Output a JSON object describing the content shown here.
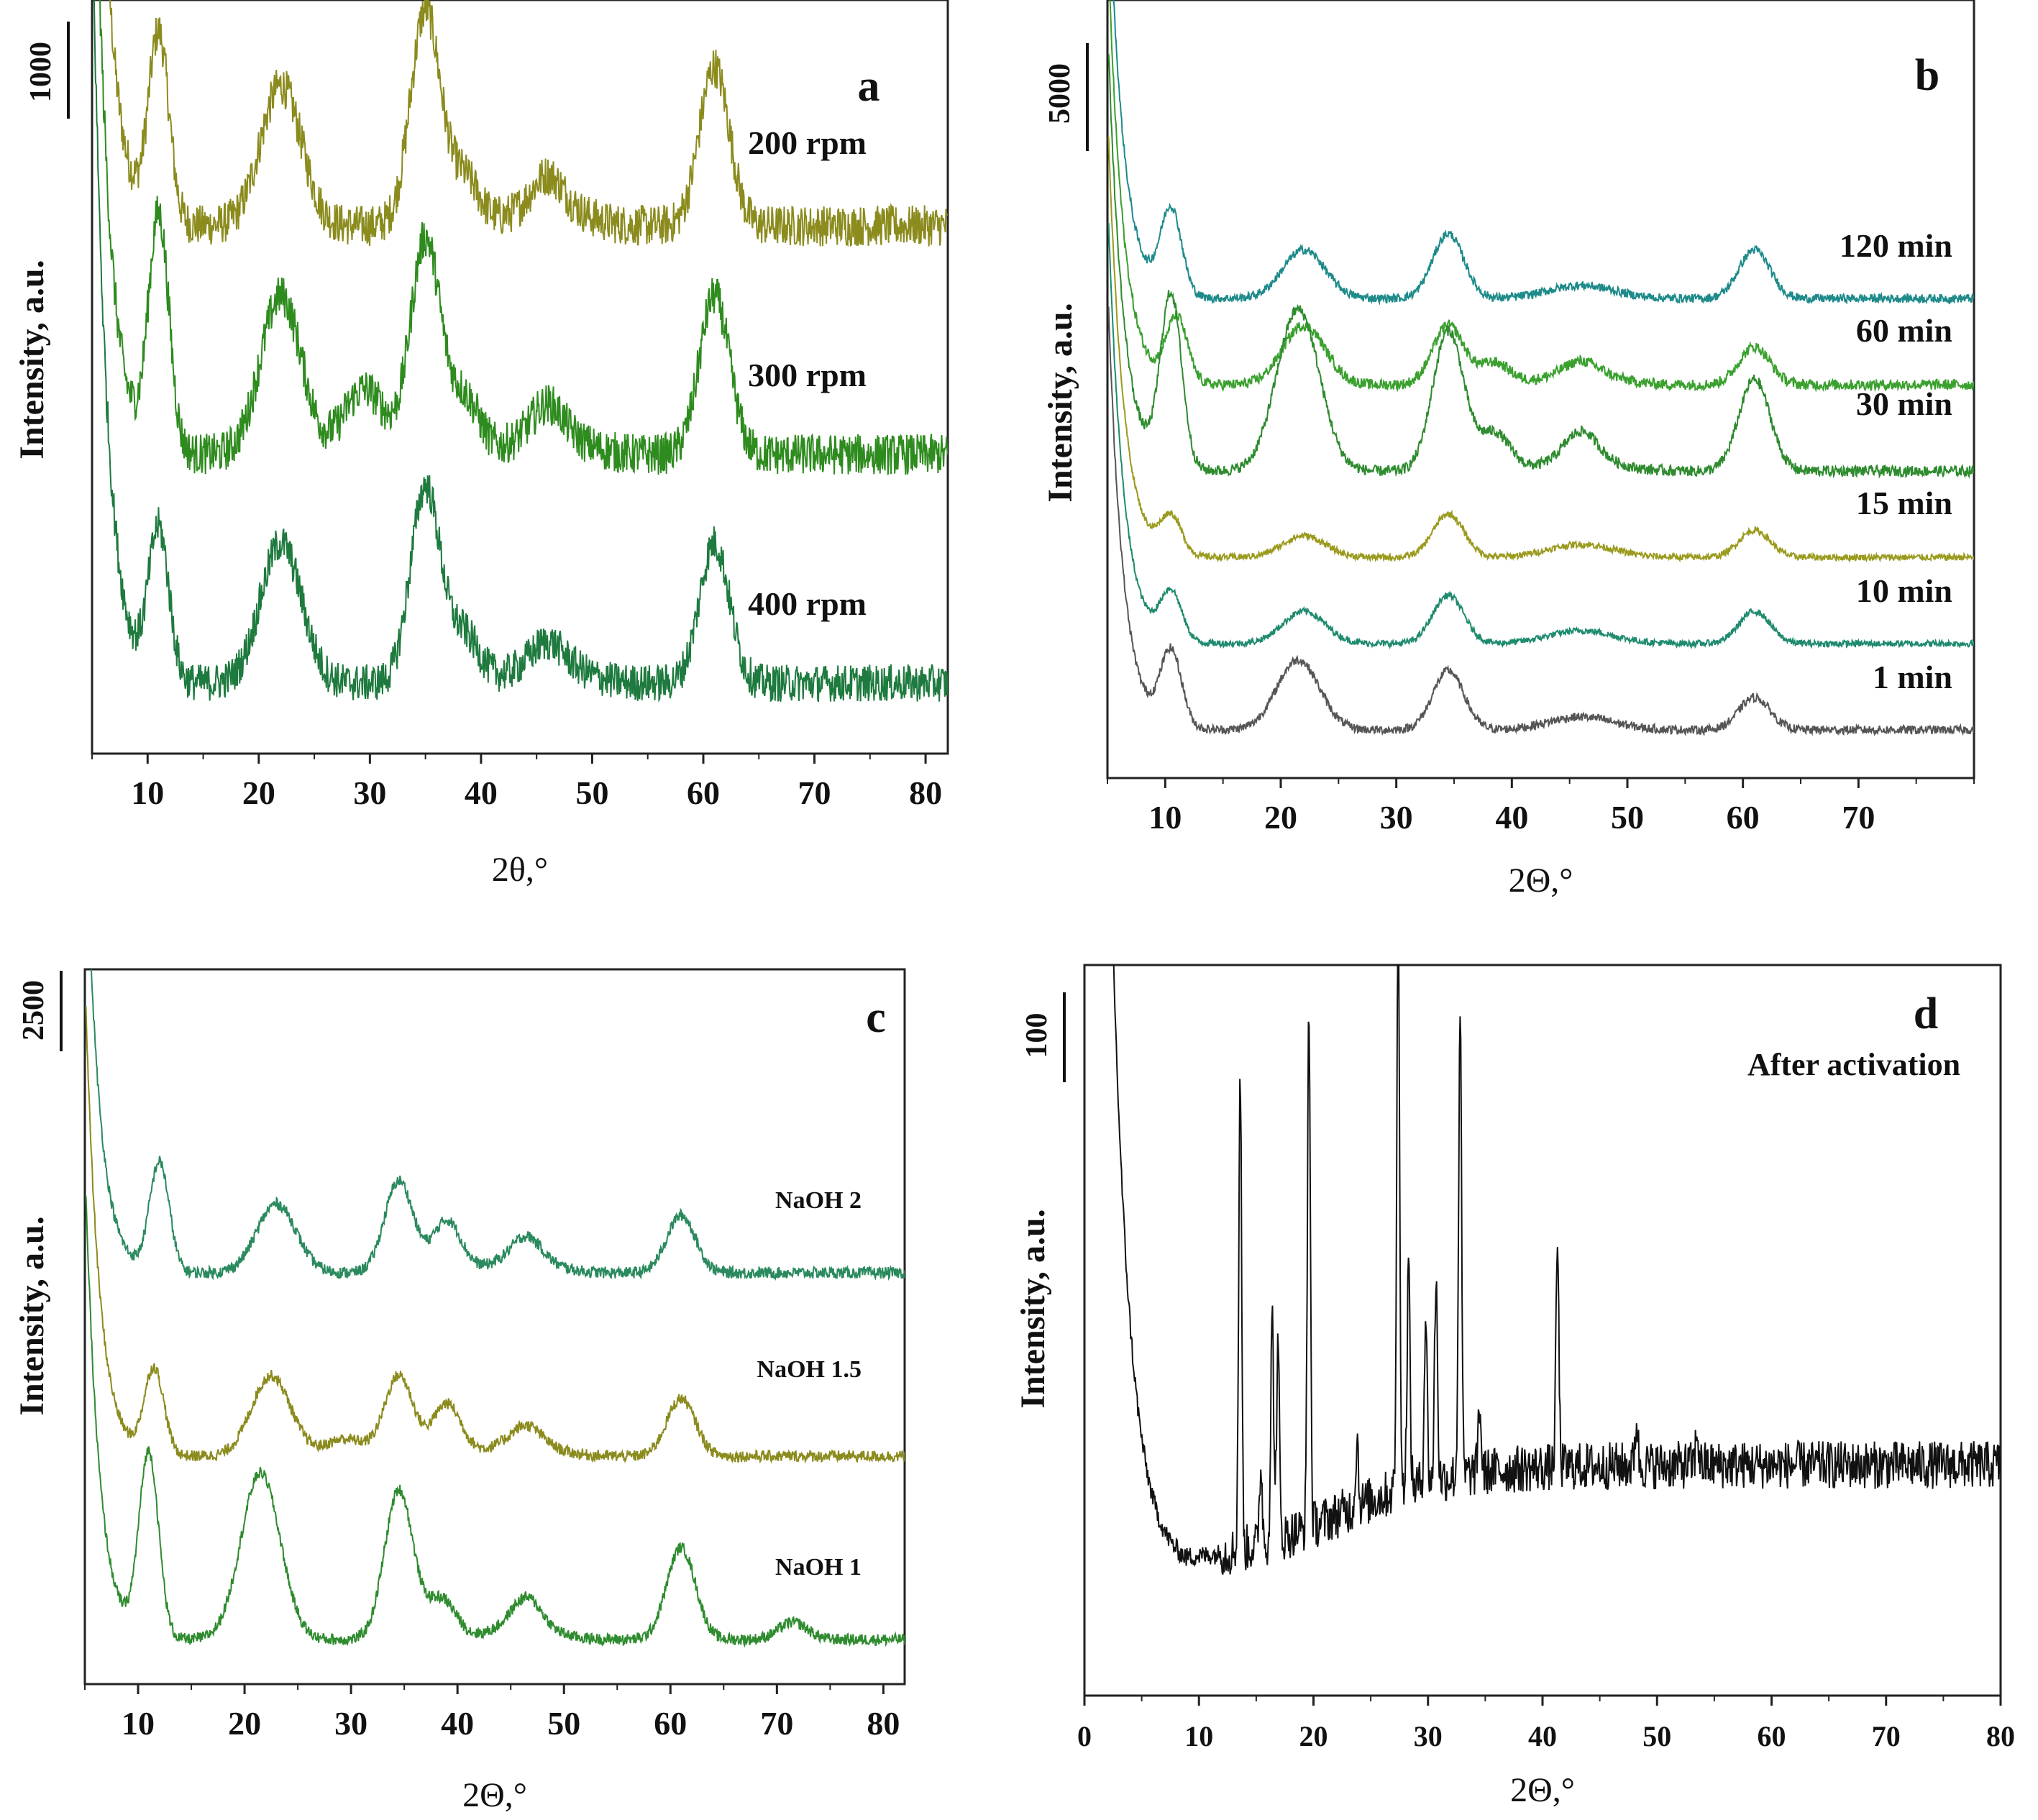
{
  "chart_data": [
    {
      "id": "a",
      "type": "line",
      "panel_label": "a",
      "xlabel": "2θ,°",
      "ylabel": "Intensity, a.u.",
      "xlim": [
        5,
        82
      ],
      "x_ticks": [
        10,
        20,
        30,
        40,
        50,
        60,
        70,
        80
      ],
      "scale_bar_label": "1000",
      "offsets": [
        2,
        1,
        0
      ],
      "series": [
        {
          "name": "200 rpm",
          "color": "#8b8b1e",
          "peaks": [
            [
              11,
              1.0
            ],
            [
              22,
              0.75
            ],
            [
              29.5,
              0
            ],
            [
              35,
              1.15
            ],
            [
              38.5,
              0.25
            ],
            [
              46,
              0.15
            ],
            [
              61,
              0.85
            ]
          ],
          "noise": 0.11
        },
        {
          "name": "300 rpm",
          "color": "#2e8b1e",
          "peaks": [
            [
              11,
              1.25
            ],
            [
              22,
              0.85
            ],
            [
              29.5,
              0.35
            ],
            [
              35,
              1.15
            ],
            [
              38.5,
              0.3
            ],
            [
              46,
              0.15
            ],
            [
              61,
              0.85
            ]
          ],
          "noise": 0.11
        },
        {
          "name": "400 rpm",
          "color": "#1e7a3e",
          "peaks": [
            [
              11,
              0.8
            ],
            [
              22,
              0.75
            ],
            [
              35,
              1.05
            ],
            [
              38.5,
              0.25
            ],
            [
              46,
              0.1
            ],
            [
              61,
              0.75
            ]
          ],
          "noise": 0.1
        }
      ]
    },
    {
      "id": "b",
      "type": "line",
      "panel_label": "b",
      "xlabel": "2Θ,°",
      "ylabel": "Intensity, a.u.",
      "xlim": [
        5,
        80
      ],
      "x_ticks": [
        10,
        20,
        30,
        40,
        50,
        60,
        70
      ],
      "scale_bar_label": "5000",
      "offsets": [
        5,
        4,
        3,
        2,
        1,
        0
      ],
      "series": [
        {
          "name": "120 min",
          "color": "#1e8a8a",
          "peaks": [
            [
              10.5,
              0.8
            ],
            [
              22,
              0.45
            ],
            [
              34.5,
              0.6
            ],
            [
              61,
              0.45
            ]
          ],
          "noise": 0.04
        },
        {
          "name": "60 min",
          "color": "#3aa02e",
          "peaks": [
            [
              11,
              0.6
            ],
            [
              22,
              0.55
            ],
            [
              34.5,
              0.55
            ],
            [
              38.5,
              0.2
            ],
            [
              46,
              0.1
            ],
            [
              61,
              0.35
            ]
          ],
          "noise": 0.05
        },
        {
          "name": "30 min",
          "color": "#2e8b2e",
          "peaks": [
            [
              10.5,
              1.6
            ],
            [
              21.5,
              1.5
            ],
            [
              34.5,
              1.3
            ],
            [
              38.5,
              0.35
            ],
            [
              46,
              0.25
            ],
            [
              61,
              0.85
            ]
          ],
          "noise": 0.05
        },
        {
          "name": "15 min",
          "color": "#9a9a1e",
          "peaks": [
            [
              10.5,
              0.35
            ],
            [
              22,
              0.2
            ],
            [
              34.5,
              0.4
            ],
            [
              61,
              0.25
            ]
          ],
          "noise": 0.03
        },
        {
          "name": "10 min",
          "color": "#1e8a6e",
          "peaks": [
            [
              10.5,
              0.45
            ],
            [
              22,
              0.3
            ],
            [
              34.5,
              0.45
            ],
            [
              61,
              0.3
            ]
          ],
          "noise": 0.03
        },
        {
          "name": "1 min",
          "color": "#555555",
          "peaks": [
            [
              10.5,
              0.7
            ],
            [
              21.5,
              0.65
            ],
            [
              34.5,
              0.55
            ],
            [
              61,
              0.3
            ]
          ],
          "noise": 0.04
        }
      ]
    },
    {
      "id": "c",
      "type": "line",
      "panel_label": "c",
      "xlabel": "2Θ,°",
      "ylabel": "Intensity, a.u.",
      "xlim": [
        5,
        82
      ],
      "x_ticks": [
        10,
        20,
        30,
        40,
        50,
        60,
        70,
        80
      ],
      "scale_bar_label": "2500",
      "offsets": [
        2,
        1,
        0
      ],
      "series": [
        {
          "name": "NaOH 2",
          "color": "#2a8a5e",
          "peaks": [
            [
              12,
              0.95
            ],
            [
              23,
              0.6
            ],
            [
              34.5,
              0.8
            ],
            [
              39,
              0.45
            ],
            [
              46.5,
              0.2
            ],
            [
              61,
              0.5
            ]
          ],
          "noise": 0.05
        },
        {
          "name": "NaOH 1.5",
          "color": "#8b8b1e",
          "peaks": [
            [
              11.5,
              0.75
            ],
            [
              22.5,
              0.7
            ],
            [
              29.5,
              0.15
            ],
            [
              34.5,
              0.7
            ],
            [
              39,
              0.45
            ],
            [
              46.5,
              0.15
            ],
            [
              61,
              0.5
            ]
          ],
          "noise": 0.05
        },
        {
          "name": "NaOH 1",
          "color": "#2e8b2e",
          "peaks": [
            [
              11,
              1.6
            ],
            [
              21.5,
              1.45
            ],
            [
              34.5,
              1.3
            ],
            [
              38.5,
              0.35
            ],
            [
              46.5,
              0.25
            ],
            [
              61,
              0.8
            ],
            [
              71.5,
              0.15
            ]
          ],
          "noise": 0.05
        }
      ]
    },
    {
      "id": "d",
      "type": "line",
      "panel_label": "d",
      "annotation": "After activation",
      "xlabel": "2Θ,°",
      "ylabel": "Intensity, a.u.",
      "xlim": [
        0,
        80
      ],
      "x_ticks": [
        0,
        10,
        20,
        30,
        40,
        50,
        60,
        70,
        80
      ],
      "scale_bar_label": "100",
      "series": [
        {
          "name": "After activation",
          "color": "#111111",
          "sharp_peaks": [
            [
              13.6,
              4.3
            ],
            [
              15.4,
              0.7
            ],
            [
              16.4,
              2.0
            ],
            [
              16.9,
              1.7
            ],
            [
              19.6,
              4.7
            ],
            [
              23.8,
              0.6
            ],
            [
              27.4,
              5.1
            ],
            [
              28.3,
              2.0
            ],
            [
              29.8,
              1.5
            ],
            [
              30.7,
              1.8
            ],
            [
              32.8,
              4.2
            ],
            [
              34.5,
              0.6
            ],
            [
              41.3,
              2.0
            ],
            [
              48.2,
              0.4
            ],
            [
              53.5,
              0.3
            ]
          ],
          "noise": 0.18
        }
      ]
    }
  ]
}
